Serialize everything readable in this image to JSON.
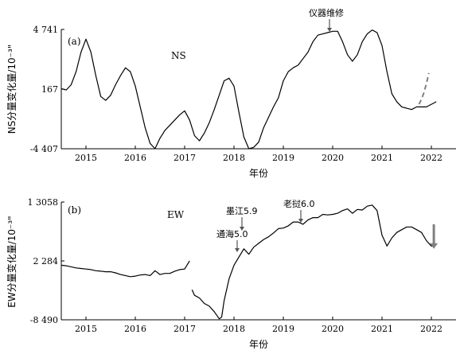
{
  "chart_data": [
    {
      "type": "line",
      "panel_label": "(a)",
      "series_label": "NS",
      "xlabel": "年份",
      "ylabel": "NS分量变化量/10⁻³\"",
      "xlim": [
        2014.5,
        2022.5
      ],
      "xticks": [
        "2015",
        "2016",
        "2017",
        "2018",
        "2019",
        "2020",
        "2021",
        "2022"
      ],
      "yticks": [
        {
          "value": 4741,
          "label": "4 741"
        },
        {
          "value": 167,
          "label": "167"
        },
        {
          "value": -4407,
          "label": "-4 407"
        }
      ],
      "ylim": [
        -4407,
        4741
      ],
      "grid": false,
      "series": [
        {
          "style": "solid",
          "color": "#000000",
          "x": [
            2014.5,
            2014.6,
            2014.7,
            2014.8,
            2014.9,
            2015.0,
            2015.1,
            2015.2,
            2015.3,
            2015.4,
            2015.5,
            2015.6,
            2015.7,
            2015.8,
            2015.9,
            2016.0,
            2016.1,
            2016.2,
            2016.3,
            2016.4,
            2016.5,
            2016.6,
            2016.7,
            2016.8,
            2016.9,
            2017.0,
            2017.1,
            2017.2,
            2017.3,
            2017.4,
            2017.5,
            2017.6,
            2017.7,
            2017.8,
            2017.9,
            2018.0,
            2018.1,
            2018.2,
            2018.3,
            2018.4,
            2018.5,
            2018.6,
            2018.7,
            2018.8,
            2018.9,
            2019.0,
            2019.1,
            2019.2,
            2019.3,
            2019.4,
            2019.5,
            2019.6,
            2019.7,
            2019.8,
            2019.9,
            2020.0,
            2020.1,
            2020.2,
            2020.3,
            2020.4,
            2020.5,
            2020.6,
            2020.7,
            2020.8,
            2020.9,
            2021.0,
            2021.1,
            2021.2,
            2021.3,
            2021.4,
            2021.5,
            2021.6,
            2021.7,
            2021.8,
            2021.9,
            2022.0,
            2022.1
          ],
          "y": [
            200,
            100,
            500,
            1500,
            3000,
            4000,
            3000,
            1200,
            -400,
            -700,
            -300,
            500,
            1200,
            1800,
            1500,
            400,
            -1200,
            -2800,
            -4000,
            -4400,
            -3600,
            -3000,
            -2600,
            -2200,
            -1800,
            -1500,
            -2200,
            -3400,
            -3800,
            -3200,
            -2400,
            -1400,
            -300,
            800,
            1000,
            400,
            -1600,
            -3500,
            -4400,
            -4300,
            -3900,
            -2800,
            -2000,
            -1200,
            -500,
            800,
            1500,
            1800,
            2000,
            2500,
            3000,
            3800,
            4300,
            4400,
            4500,
            4600,
            4600,
            3800,
            2800,
            2300,
            2800,
            3800,
            4400,
            4700,
            4500,
            3500,
            1500,
            -200,
            -800,
            -1200,
            -1300,
            -1400,
            -1200,
            -1200,
            -1200,
            -1000,
            -800
          ]
        },
        {
          "style": "dashed",
          "color": "#808080",
          "x": [
            2021.75,
            2021.8,
            2021.85,
            2021.9,
            2021.95
          ],
          "y": [
            -1000,
            -600,
            -100,
            600,
            1400
          ]
        }
      ],
      "annotations": [
        {
          "text": "仪器维修",
          "x": 2020.05,
          "y": 4741
        }
      ]
    },
    {
      "type": "line",
      "panel_label": "(b)",
      "series_label": "EW",
      "xlabel": "年份",
      "ylabel": "EW分量变化量/10⁻³\"",
      "xlim": [
        2014.5,
        2022.5
      ],
      "xticks": [
        "2015",
        "2016",
        "2017",
        "2018",
        "2019",
        "2020",
        "2021",
        "2022"
      ],
      "yticks": [
        {
          "value": 13058,
          "label": "1 3058"
        },
        {
          "value": 2284,
          "label": "2 284"
        },
        {
          "value": -8490,
          "label": "-8 490"
        }
      ],
      "ylim": [
        -8490,
        13058
      ],
      "grid": false,
      "series": [
        {
          "style": "solid",
          "color": "#000000",
          "x": [
            2014.5,
            2014.6,
            2014.7,
            2014.8,
            2014.9,
            2015.0,
            2015.1,
            2015.2,
            2015.3,
            2015.4,
            2015.5,
            2015.6,
            2015.7,
            2015.8,
            2015.9,
            2016.0,
            2016.1,
            2016.2,
            2016.3,
            2016.4,
            2016.5,
            2016.6,
            2016.7,
            2016.8,
            2016.9,
            2017.0,
            2017.1
          ],
          "y": [
            1500,
            1400,
            1200,
            1000,
            900,
            800,
            700,
            500,
            400,
            300,
            300,
            100,
            -200,
            -400,
            -600,
            -500,
            -300,
            -200,
            -400,
            500,
            -200,
            0,
            0,
            400,
            700,
            800,
            2300
          ]
        },
        {
          "style": "solid",
          "color": "#000000",
          "x": [
            2017.15,
            2017.2,
            2017.3,
            2017.4,
            2017.5,
            2017.6,
            2017.7,
            2017.75,
            2017.8,
            2017.9,
            2018.0,
            2018.1,
            2018.2,
            2018.3,
            2018.4,
            2018.5,
            2018.6,
            2018.7,
            2018.8,
            2018.9,
            2019.0,
            2019.1,
            2019.2,
            2019.3,
            2019.4,
            2019.5,
            2019.6,
            2019.7,
            2019.8,
            2019.9,
            2020.0,
            2020.1,
            2020.2,
            2020.3,
            2020.4,
            2020.5,
            2020.6,
            2020.7,
            2020.8,
            2020.9,
            2021.0,
            2021.1,
            2021.2,
            2021.3,
            2021.4,
            2021.5,
            2021.6,
            2021.7,
            2021.8,
            2021.9,
            2022.0,
            2022.05
          ],
          "y": [
            -3000,
            -4000,
            -4500,
            -5500,
            -6000,
            -7000,
            -8300,
            -8000,
            -5000,
            -1000,
            1500,
            3000,
            4500,
            3500,
            4800,
            5500,
            6200,
            6700,
            7400,
            8200,
            8300,
            8700,
            9400,
            9400,
            9000,
            9800,
            10200,
            10200,
            10800,
            10700,
            10800,
            11000,
            11500,
            11800,
            11000,
            11700,
            11600,
            12300,
            12500,
            11500,
            7000,
            5000,
            6500,
            7500,
            8000,
            8500,
            8500,
            8000,
            7500,
            6000,
            5000,
            5000
          ]
        }
      ],
      "arrow": {
        "x": 2022.05,
        "y_from": 9000,
        "y_to": 4500,
        "color": "#808080"
      },
      "annotations": [
        {
          "text": "墨江5.9",
          "x": 2018.2,
          "y": 11000
        },
        {
          "text": "通海5.0",
          "x": 2018.08,
          "y": 7000
        },
        {
          "text": "老挝6.0",
          "x": 2019.45,
          "y": 12500
        }
      ]
    }
  ]
}
